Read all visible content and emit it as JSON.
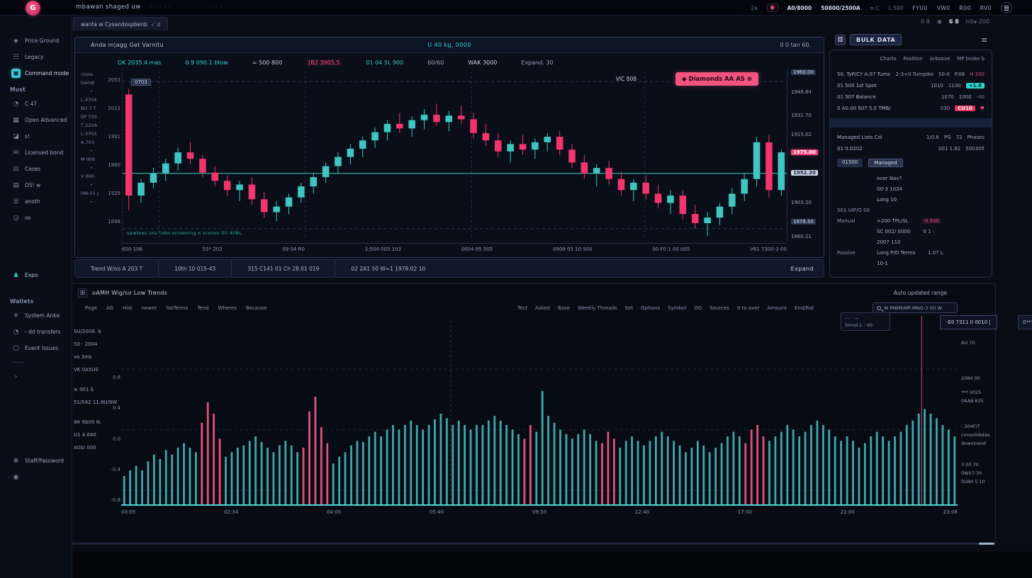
{
  "colors": {
    "accent_pink": "#f0457c",
    "accent_teal": "#3fc6c0",
    "accent_cyan": "#38d3d6",
    "badge_red": "#e8325a"
  },
  "topbar": {
    "logo_glyph": "G",
    "brand": "mbawan shaged uw",
    "dots1": "· · · · ·",
    "dots2": "· · · · ·",
    "right_items": [
      {
        "t": "·",
        "cls": "dim"
      },
      {
        "t": "2a",
        "cls": "dim"
      },
      {
        "t": "◉",
        "cls": "bell"
      },
      {
        "t": "A0/8000",
        "cls": "strong"
      },
      {
        "t": "50800/2500A",
        "cls": "strong"
      },
      {
        "t": "≡ C",
        "cls": "dim"
      },
      {
        "t": "L 500",
        "cls": "dim"
      },
      {
        "t": "FYU0",
        "cls": "sp"
      },
      {
        "t": "VW0",
        "cls": "sp"
      },
      {
        "t": "R00",
        "cls": "sp"
      },
      {
        "t": "RV0",
        "cls": "sp"
      },
      {
        "t": "≣",
        "cls": "burger"
      }
    ]
  },
  "subbar": {
    "items": [
      {
        "t": "0 8",
        "cls": "dim"
      },
      {
        "t": "◉",
        "cls": "dim"
      },
      {
        "t": "6 8",
        "cls": "strong"
      },
      {
        "t": "h0a-200",
        "cls": "dim"
      }
    ]
  },
  "sidebar": {
    "sections": [
      {
        "items": [
          {
            "icon": "◈",
            "icon_name": "compass-icon",
            "label": "Price Ground"
          },
          {
            "icon": "☷",
            "icon_name": "list-icon",
            "label": "Legacy"
          },
          {
            "icon": "▣",
            "icon_name": "dashboard-icon",
            "label": "Command mode",
            "active": true
          },
          {
            "heading": "Must"
          },
          {
            "icon": "◔",
            "icon_name": "clock-icon",
            "label": "C 47"
          },
          {
            "icon": "▦",
            "icon_name": "grid-icon",
            "label": "Open Advanced"
          },
          {
            "icon": "◪",
            "icon_name": "chart-icon",
            "label": "s!"
          },
          {
            "icon": "✉",
            "icon_name": "mail-icon",
            "label": "Licensed bond"
          },
          {
            "icon": "⊟",
            "icon_name": "folder-icon",
            "label": "Cases"
          },
          {
            "icon": "▤",
            "icon_name": "keyboard-icon",
            "label": "OS! w"
          },
          {
            "icon": "☰",
            "icon_name": "rows-icon",
            "label": "anoth"
          },
          {
            "icon": "◶",
            "icon_name": "globe-icon",
            "label": "os"
          }
        ]
      },
      {
        "gap": "lg",
        "items": [
          {
            "icon": "♟",
            "icon_name": "flag-icon",
            "label": "Expo",
            "cyan": true
          }
        ]
      },
      {
        "gap": "md",
        "heading": "Wallets",
        "items": [
          {
            "icon": "✳",
            "icon_name": "settings-icon",
            "label": "System Anka"
          },
          {
            "icon": "◔",
            "icon_name": "history-icon",
            "label": "- dd transfers"
          },
          {
            "icon": "▢",
            "icon_name": "checkbox-icon",
            "label": "Event Issues"
          },
          {
            "divider": true
          },
          {
            "icon": "›",
            "icon_name": "arrow-right-icon",
            "label": ""
          }
        ]
      },
      {
        "gap": "xl",
        "items": [
          {
            "icon": "✻",
            "icon_name": "support-icon",
            "label": "Staff/Password"
          },
          {
            "icon": "◉",
            "icon_name": "gear-icon",
            "label": ""
          }
        ]
      }
    ]
  },
  "chart_tab": {
    "label": "wanta w Cysandospbenb",
    "check": "✓ d"
  },
  "chart_panel": {
    "head_left": "Anda m|agg   Get Varnitu",
    "head_center": "U 40 kg, 0000",
    "head_right": "0   0   tan 60.",
    "ohlc": [
      {
        "t": "OK 2035.4 mas",
        "cls": "cyan"
      },
      {
        "t": "0.9 090.1 btow",
        "cls": "cyan"
      },
      {
        "t": "= 500 800",
        "cls": "light"
      },
      {
        "t": "[B2 3905.5",
        "cls": "pinktext"
      },
      {
        "t": "01 04 5L 900",
        "cls": "teal"
      },
      {
        "t": "60/60",
        "cls": "mut"
      },
      {
        "t": "WAK 3000",
        "cls": "light"
      },
      {
        "t": "Expand. 30",
        "cls": "mut"
      }
    ],
    "plot_chip": "0703",
    "plot_note": "sawtees ans take screening x scenes 50 40BL",
    "signal_left": "VIC 808",
    "signal_badge": "◆ Diamonds AA AS  ⊜",
    "tools": [
      "cross",
      "trendl",
      "•",
      "L 4704",
      "BU 7 T",
      "0P 730",
      "T 220A",
      "L 3703",
      "A 703",
      "•",
      "M 906",
      "•",
      "V 000",
      "•",
      "0W-01 J",
      "•"
    ],
    "left_ticks": [
      {
        "t": "2053",
        "y": 12
      },
      {
        "t": "2022",
        "y": 52
      },
      {
        "t": "1991",
        "y": 92
      },
      {
        "t": "1960",
        "y": 132
      },
      {
        "t": "1929",
        "y": 172
      },
      {
        "t": "1898",
        "y": 212
      }
    ],
    "right_axis": [
      {
        "t": "1960.00",
        "y": 1,
        "cls": "badge-dark"
      },
      {
        "t": "1948.84",
        "y": 29
      },
      {
        "t": "1931.70",
        "y": 62
      },
      {
        "t": "1915.02",
        "y": 89
      },
      {
        "t": "1975.00",
        "y": 114,
        "cls": "badge-pink"
      },
      {
        "t": "1952.20",
        "y": 143,
        "cls": "badge-light"
      },
      {
        "t": "1903.20",
        "y": 185
      },
      {
        "t": "1878.50",
        "y": 212,
        "cls": "badge-dark"
      },
      {
        "t": "1860.21",
        "y": 233
      }
    ],
    "toolbar_segs": [
      {
        "t": "Trend W/oo A 203 T"
      },
      {
        "t": "10th 10  015-43"
      },
      {
        "t": "315 C141 01 Ch 28.01 019"
      },
      {
        "t": "02 2A1 50 W=1 1978.02 10"
      }
    ],
    "expand_label": "Expand"
  },
  "bottom_panel": {
    "icon": "⊞",
    "title": "oAMH Wig/so Low Trends",
    "range_label": "Auto updated range",
    "tags_left": [
      "Page",
      "AG",
      "Hist",
      "newer",
      "listTerms",
      "Tend",
      "Wheres",
      "Because"
    ],
    "tags_right": [
      "Tect",
      "Asked",
      "Base",
      "Weekly Threads",
      "Set",
      "Options",
      "Symbol",
      "OG",
      "Sources",
      "9 to over",
      "Amount",
      "End/Rat"
    ],
    "search_text": "W MWM/MP-MNO-3 (0) W",
    "tooltip_text": "-E0 7311 0 0010 |",
    "tooltip_chip": "0*******",
    "minibox_line1": "—  ·  —",
    "minibox_line2": "Simot L : 00",
    "left_stats": [
      "SU/2009.  b",
      "50 · 2004",
      "vo 3ms",
      "VK 0A5U0",
      "",
      "≡ 001 $",
      "51/042 11.8U/9W",
      "",
      "Wr 6b00  N.",
      "U1 4.640",
      "A00/ 000"
    ],
    "y_ticks": [
      {
        "t": "0.8",
        "y": 70
      },
      {
        "t": "0.4",
        "y": 113
      },
      {
        "t": "0.0",
        "y": 157
      },
      {
        "t": "-0.4",
        "y": 200
      },
      {
        "t": "-0.8",
        "y": 243
      }
    ],
    "right_notes": [
      {
        "t": "AU 70",
        "y": 34
      },
      {
        "t": "2084 00",
        "y": 84
      },
      {
        "t": "*** 0025",
        "y": 104
      },
      {
        "t": "0AA8 625",
        "y": 116
      },
      {
        "t": "- 204F/T",
        "y": 152
      },
      {
        "t": "consolidates",
        "y": 164
      },
      {
        "t": "downtrend",
        "y": 176
      },
      {
        "t": "3 00 70",
        "y": 206
      },
      {
        "t": "0W07:30",
        "y": 218
      },
      {
        "t": "0U84 5 10",
        "y": 230
      }
    ]
  },
  "right_panel": {
    "header_icon": "▥",
    "title": "BULK DATA",
    "menu_icon": "≡",
    "tabs": [
      "Charts",
      "Position",
      "Arbzave",
      "MP broke b"
    ],
    "thead": [
      {
        "t": "50.  TyP/CY A.07 Turns"
      },
      {
        "t": "2-3+0 Turnpike"
      },
      {
        "t": "50-0"
      },
      {
        "t": "P.08"
      },
      {
        "t": "H 200",
        "cls": "pink"
      }
    ],
    "rows": [
      [
        {
          "t": "01 500 1st Spot"
        },
        {
          "t": "1010"
        },
        {
          "t": "1100"
        },
        {
          "t": "+1.8",
          "cls": "badge-teal"
        }
      ],
      [
        {
          "t": "01 507 Balance"
        },
        {
          "t": "1070"
        },
        {
          "t": "1000"
        },
        {
          "t": "-40",
          "cls": "mut"
        }
      ],
      [
        {
          "t": "0 A0.00 507 5.0 TMB/"
        },
        {
          "t": "030"
        },
        {
          "t": "CU10",
          "cls": "badge-red"
        },
        {
          "t": "♥",
          "cls": "pink"
        }
      ]
    ],
    "section_row": [
      {
        "t": "Managed Lists Col"
      },
      {
        "t": "1/0.6"
      },
      {
        "t": "PG"
      },
      {
        "t": "72"
      },
      {
        "t": "Phases"
      }
    ],
    "sub_row": [
      {
        "t": "01 0.0202"
      },
      {
        "t": "001 1.82"
      },
      {
        "t": "500305"
      }
    ],
    "chips": [
      {
        "t": "01500",
        "cls": "dark"
      },
      {
        "t": "Managed",
        "cls": "outline"
      }
    ],
    "kv": [
      {
        "v": "over Nav?"
      },
      {
        "v": "00-3 1034"
      },
      {
        "v": "Long 10"
      },
      {
        "l": "501 UIP/O 00"
      },
      {
        "l": "Manual",
        "v": ">200 TPL/SL",
        "x": "-0.500",
        "xcls": "pink"
      },
      {
        "v": "SC 002/ 0000",
        "x": "0 1 :"
      },
      {
        "v": "2007 110"
      },
      {
        "l": "Passive",
        "v": "Long P/O Terms",
        "x": "1.07 L"
      },
      {
        "v": "10-1"
      }
    ]
  },
  "chart_data": [
    {
      "type": "candlestick",
      "title": "Anda m|agg Get Varnitu",
      "ylim": [
        1878,
        2066
      ],
      "hline": 1952.2,
      "dashed_hlines": [
        2052,
        1892
      ],
      "gridlines_x": [
        0.055,
        0.275,
        0.525,
        0.785
      ],
      "up_color": "#3fc6c0",
      "down_color": "#f2356d",
      "x_labels": [
        "650 106",
        "55* 202",
        "09 04 R0",
        "3:504 005 103",
        "0004 95 505",
        "0909 05 10 500",
        "00 F0.1 00 005",
        "V61 7300-3 00"
      ],
      "candles": [
        [
          2038,
          2044,
          1912,
          1928
        ],
        [
          1928,
          1946,
          1920,
          1942
        ],
        [
          1942,
          1958,
          1936,
          1952
        ],
        [
          1952,
          1968,
          1944,
          1963
        ],
        [
          1963,
          1980,
          1955,
          1975
        ],
        [
          1975,
          1986,
          1962,
          1968
        ],
        [
          1968,
          1972,
          1948,
          1953
        ],
        [
          1953,
          1960,
          1938,
          1944
        ],
        [
          1944,
          1950,
          1928,
          1934
        ],
        [
          1934,
          1944,
          1922,
          1940
        ],
        [
          1940,
          1948,
          1918,
          1924
        ],
        [
          1924,
          1932,
          1904,
          1910
        ],
        [
          1910,
          1922,
          1900,
          1916
        ],
        [
          1916,
          1930,
          1908,
          1926
        ],
        [
          1926,
          1942,
          1920,
          1938
        ],
        [
          1938,
          1952,
          1930,
          1948
        ],
        [
          1948,
          1964,
          1942,
          1960
        ],
        [
          1960,
          1975,
          1952,
          1970
        ],
        [
          1970,
          1984,
          1962,
          1979
        ],
        [
          1979,
          1992,
          1970,
          1988
        ],
        [
          1988,
          2002,
          1980,
          1997
        ],
        [
          1997,
          2010,
          1988,
          2006
        ],
        [
          2006,
          2018,
          1996,
          2001
        ],
        [
          2001,
          2014,
          1992,
          2010
        ],
        [
          2010,
          2022,
          2000,
          2016
        ],
        [
          2016,
          2028,
          2004,
          2008
        ],
        [
          2008,
          2020,
          1998,
          2015
        ],
        [
          2015,
          2026,
          2006,
          2011
        ],
        [
          2011,
          2018,
          1990,
          1996
        ],
        [
          1996,
          2006,
          1982,
          1988
        ],
        [
          1988,
          1996,
          1970,
          1976
        ],
        [
          1976,
          1988,
          1964,
          1984
        ],
        [
          1984,
          1994,
          1972,
          1978
        ],
        [
          1978,
          1990,
          1968,
          1986
        ],
        [
          1986,
          1996,
          1976,
          1992
        ],
        [
          1992,
          1998,
          1972,
          1978
        ],
        [
          1978,
          1984,
          1958,
          1964
        ],
        [
          1964,
          1972,
          1946,
          1952
        ],
        [
          1952,
          1962,
          1938,
          1958
        ],
        [
          1958,
          1966,
          1940,
          1946
        ],
        [
          1946,
          1954,
          1928,
          1934
        ],
        [
          1934,
          1946,
          1922,
          1942
        ],
        [
          1942,
          1950,
          1924,
          1930
        ],
        [
          1930,
          1940,
          1914,
          1920
        ],
        [
          1920,
          1934,
          1908,
          1928
        ],
        [
          1928,
          1934,
          1902,
          1908
        ],
        [
          1908,
          1918,
          1892,
          1898
        ],
        [
          1898,
          1910,
          1884,
          1904
        ],
        [
          1904,
          1920,
          1896,
          1916
        ],
        [
          1916,
          1936,
          1908,
          1930
        ],
        [
          1930,
          1952,
          1922,
          1946
        ],
        [
          1946,
          1992,
          1938,
          1986
        ],
        [
          1986,
          1994,
          1926,
          1934
        ],
        [
          1934,
          1978,
          1928,
          1975
        ]
      ]
    },
    {
      "type": "bar",
      "title": "oAMH Wig/so Low Trends",
      "baseline": "bottom",
      "up_color": "#3fa8ab",
      "down_color": "#e0517a",
      "gridlines_y": [
        0.28,
        0.6,
        0.92
      ],
      "dashed_vline_x": 0.394,
      "crosshair_x": 0.957,
      "x_labels": [
        "00:05",
        "02:34",
        "04:00",
        "05:40",
        "09:50",
        "12:40",
        "17:00",
        "21:00",
        "23:08"
      ],
      "values": [
        0.25,
        0.3,
        0.34,
        0.3,
        0.38,
        0.44,
        0.4,
        0.48,
        0.44,
        0.5,
        0.54,
        0.5,
        0.46,
        -0.72,
        -0.9,
        -0.8,
        -0.58,
        0.42,
        0.46,
        0.5,
        0.52,
        0.56,
        0.6,
        0.55,
        0.5,
        0.46,
        0.52,
        0.56,
        0.52,
        0.46,
        -0.5,
        -0.82,
        -0.95,
        -0.68,
        -0.54,
        0.36,
        0.42,
        0.46,
        0.52,
        0.56,
        0.55,
        0.6,
        0.64,
        0.6,
        0.66,
        0.7,
        0.66,
        0.7,
        0.74,
        0.7,
        0.66,
        0.7,
        0.75,
        0.8,
        0.76,
        0.7,
        0.74,
        0.7,
        0.66,
        0.7,
        0.7,
        0.74,
        0.78,
        0.74,
        0.7,
        0.66,
        0.62,
        -0.58,
        -0.7,
        0.64,
        1.0,
        0.78,
        0.72,
        0.66,
        0.62,
        0.58,
        0.62,
        0.66,
        0.62,
        0.56,
        -0.54,
        -0.64,
        -0.58,
        0.5,
        0.56,
        0.6,
        0.56,
        0.52,
        0.56,
        0.6,
        0.64,
        0.6,
        0.56,
        0.52,
        0.46,
        0.5,
        0.56,
        0.52,
        0.46,
        0.5,
        0.54,
        0.6,
        0.64,
        0.6,
        -0.54,
        -0.66,
        -0.7,
        -0.6,
        0.56,
        0.6,
        0.64,
        0.7,
        0.66,
        0.6,
        0.64,
        0.7,
        0.74,
        0.7,
        0.66,
        0.6,
        0.56,
        0.6,
        0.56,
        0.5,
        0.54,
        0.6,
        0.64,
        0.6,
        0.56,
        0.6,
        0.64,
        0.7,
        0.74,
        0.8,
        0.84,
        0.8,
        0.76,
        0.7,
        0.66,
        0.6
      ]
    }
  ]
}
